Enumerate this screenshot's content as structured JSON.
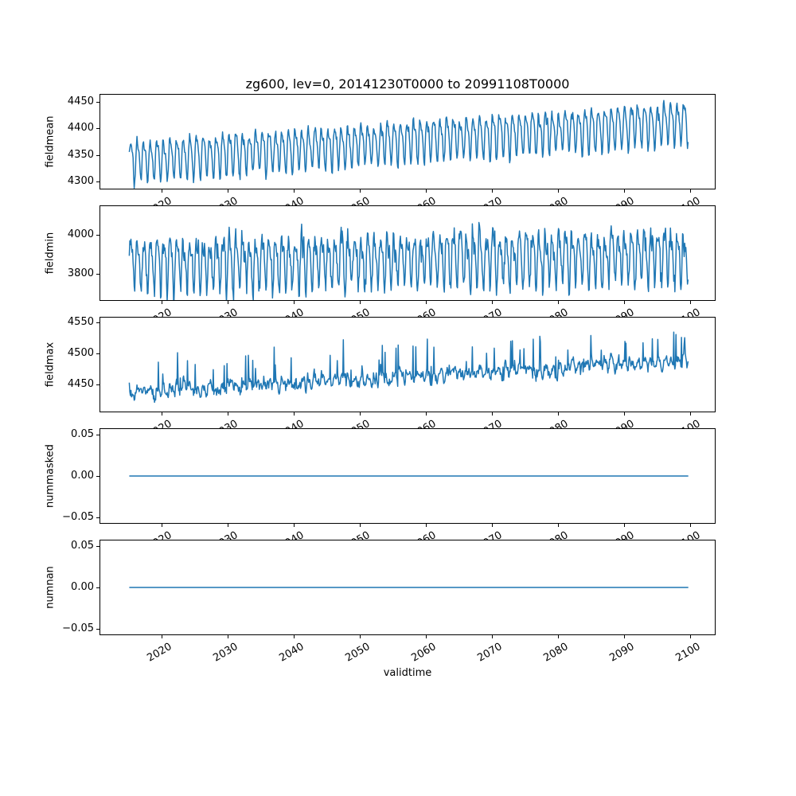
{
  "chart_data": {
    "type": "line",
    "title": "zg600, lev=0, 20141230T0000 to 20991108T0000",
    "xlabel": "validtime",
    "grid": false,
    "legend": null,
    "line_color": "#1f77b4",
    "line_width": 1.5,
    "x": {
      "ticks": [
        2020,
        2030,
        2040,
        2050,
        2060,
        2070,
        2080,
        2090,
        2100
      ],
      "tick_labels": [
        "2020",
        "2030",
        "2040",
        "2050",
        "2060",
        "2070",
        "2080",
        "2090",
        "2100"
      ],
      "tick_rotation_deg": 30,
      "lim": [
        2010.6,
        2103.9
      ],
      "data_start": 2015.0,
      "data_end": 2099.87,
      "points_per_year": 12
    },
    "subplots": [
      {
        "name": "fieldmean",
        "ylabel": "fieldmean",
        "ylim": [
          4285,
          4465
        ],
        "yticks": [
          {
            "v": 4300,
            "label": "4300"
          },
          {
            "v": 4350,
            "label": "4350"
          },
          {
            "v": 4400,
            "label": "4400"
          },
          {
            "v": 4450,
            "label": "4450"
          }
        ],
        "observed_range": [
          4293,
          4457
        ],
        "decadal_means": {
          "years": [
            2015,
            2025,
            2035,
            2045,
            2055,
            2065,
            2075,
            2085,
            2095
          ],
          "values": [
            4340,
            4349,
            4358,
            4366,
            4375,
            4384,
            4393,
            4402,
            4410
          ]
        },
        "series": {
          "kind": "seasonal",
          "seed": 1230,
          "base": 4340,
          "trend_per_year": 0.88,
          "season_amp": 36,
          "season_sharp": 0.35,
          "noise_sd": 5,
          "ar": 0.3,
          "spike_prob": 0,
          "spike_min": 0,
          "spike_max": 0
        }
      },
      {
        "name": "fieldmin",
        "ylabel": "fieldmin",
        "ylim": [
          3661,
          4152
        ],
        "yticks": [
          {
            "v": 3800,
            "label": "3800"
          },
          {
            "v": 4000,
            "label": "4000"
          }
        ],
        "observed_range": [
          3685,
          4130
        ],
        "decadal_means": {
          "years": [
            2015,
            2025,
            2035,
            2045,
            2055,
            2065,
            2075,
            2085,
            2095
          ],
          "values": [
            3858,
            3863,
            3867,
            3872,
            3876,
            3881,
            3885,
            3890,
            3894
          ]
        },
        "series": {
          "kind": "seasonal",
          "seed": 1108,
          "base": 3858,
          "trend_per_year": 0.45,
          "season_amp": 118,
          "season_sharp": 0.4,
          "noise_sd": 30,
          "ar": 0.25,
          "spike_prob": 0.008,
          "spike_min": 30,
          "spike_max": 80
        }
      },
      {
        "name": "fieldmax",
        "ylabel": "fieldmax",
        "ylim": [
          4406,
          4559
        ],
        "yticks": [
          {
            "v": 4450,
            "label": "4450"
          },
          {
            "v": 4500,
            "label": "4500"
          },
          {
            "v": 4550,
            "label": "4550"
          }
        ],
        "observed_range": [
          4413,
          4552
        ],
        "decadal_means": {
          "years": [
            2015,
            2025,
            2035,
            2045,
            2055,
            2065,
            2075,
            2085,
            2095
          ],
          "values": [
            4437,
            4443,
            4449,
            4456,
            4462,
            4468,
            4474,
            4480,
            4487
          ]
        },
        "series": {
          "kind": "seasonal",
          "seed": 600,
          "base": 4437,
          "trend_per_year": 0.62,
          "season_amp": 5,
          "season_sharp": 0.3,
          "noise_sd": 6,
          "ar": 0.55,
          "spike_prob": 0.06,
          "spike_min": 10,
          "spike_max": 55
        }
      },
      {
        "name": "nummasked",
        "ylabel": "nummasked",
        "ylim": [
          -0.0575,
          0.0575
        ],
        "yticks": [
          {
            "v": -0.05,
            "label": "−0.05"
          },
          {
            "v": 0.0,
            "label": "0.00"
          },
          {
            "v": 0.05,
            "label": "0.05"
          }
        ],
        "observed_range": [
          0,
          0
        ],
        "series": {
          "kind": "constant",
          "value": 0
        }
      },
      {
        "name": "numnan",
        "ylabel": "numnan",
        "ylim": [
          -0.0575,
          0.0575
        ],
        "yticks": [
          {
            "v": -0.05,
            "label": "−0.05"
          },
          {
            "v": 0.0,
            "label": "0.00"
          },
          {
            "v": 0.05,
            "label": "0.05"
          }
        ],
        "observed_range": [
          0,
          0
        ],
        "series": {
          "kind": "constant",
          "value": 0
        }
      }
    ]
  }
}
